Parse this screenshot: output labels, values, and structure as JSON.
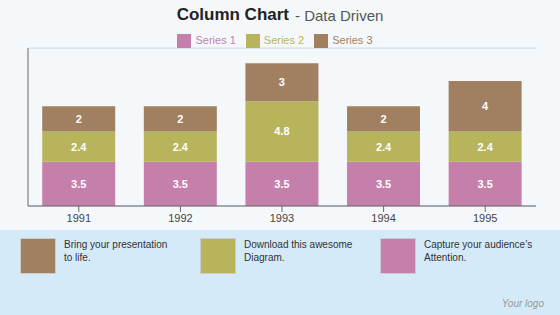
{
  "chart_data": {
    "type": "bar",
    "title": "Column Chart",
    "subtitle": "- Data Driven",
    "categories": [
      "1991",
      "1992",
      "1993",
      "1994",
      "1995"
    ],
    "series": [
      {
        "name": "Series 1",
        "color": "#c47faa",
        "values": [
          3.5,
          3.5,
          3.5,
          3.5,
          3.5
        ]
      },
      {
        "name": "Series 2",
        "color": "#b8b45c",
        "values": [
          2.4,
          2.4,
          4.8,
          2.4,
          2.4
        ]
      },
      {
        "name": "Series 3",
        "color": "#a08060",
        "values": [
          2,
          2,
          3,
          2,
          4
        ]
      }
    ],
    "stacked": true,
    "data_labels": true,
    "ylim": [
      0,
      12.5
    ],
    "yticks": [
      2,
      4,
      6,
      8,
      10,
      12
    ],
    "grid": true,
    "tick_labels": "x",
    "legend": "top",
    "annotations": [
      {
        "text": "Bring your presentation\nto life.",
        "color": "#a08060"
      },
      {
        "text": "Download this awesome\nDiagram.",
        "color": "#b8b45c"
      },
      {
        "text": "Capture your audience’s\nAttention.",
        "color": "#c47faa"
      },
      {
        "text": "Your logo"
      }
    ]
  }
}
